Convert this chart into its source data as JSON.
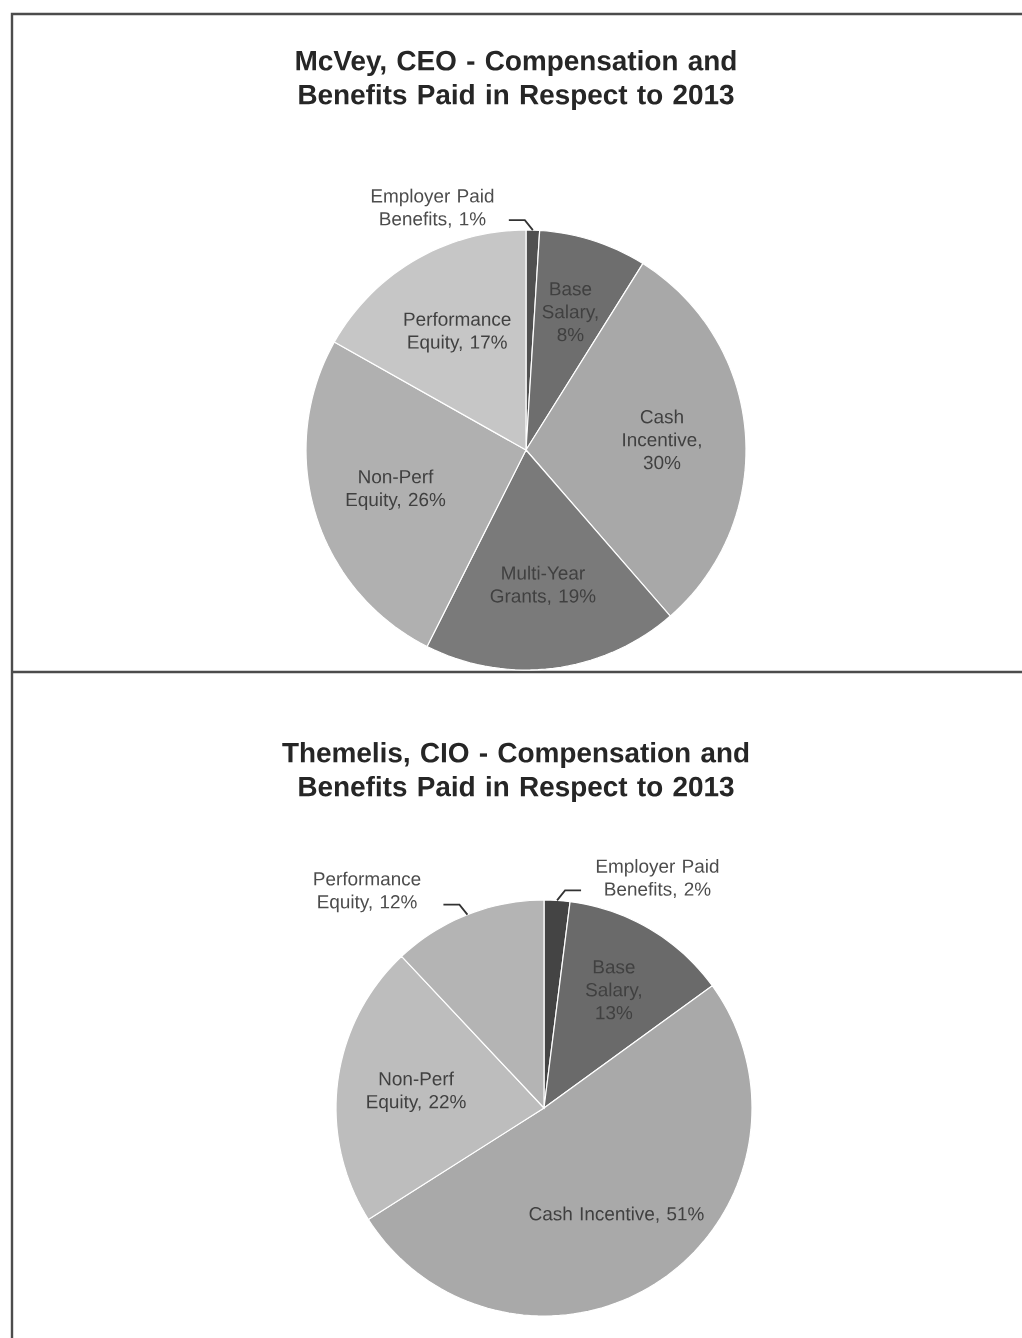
{
  "chart_data": [
    {
      "type": "pie",
      "title": "McVey, CEO - Compensation and Benefits Paid in Respect to 2013",
      "categories": [
        "Employer Paid Benefits, 1%",
        "Base Salary, 8%",
        "Cash Incentive, 30%",
        "Multi-Year Grants, 19%",
        "Non-Perf Equity, 26%",
        "Performance Equity, 17%"
      ],
      "values": [
        1,
        8,
        30,
        19,
        26,
        17
      ],
      "colors": [
        "#505050",
        "#6e6e6e",
        "#a8a8a8",
        "#7a7a7a",
        "#b0b0b0",
        "#c6c6c6"
      ]
    },
    {
      "type": "pie",
      "title": "Themelis, CIO - Compensation and Benefits Paid in Respect to 2013",
      "categories": [
        "Employer Paid Benefits, 2%",
        "Base Salary, 13%",
        "Cash Incentive, 51%",
        "Non-Perf Equity, 22%",
        "Performance Equity, 12%"
      ],
      "values": [
        2,
        13,
        51,
        22,
        12
      ],
      "colors": [
        "#444444",
        "#6a6a6a",
        "#a9a9a9",
        "#bdbdbd",
        "#b4b4b4"
      ]
    }
  ]
}
